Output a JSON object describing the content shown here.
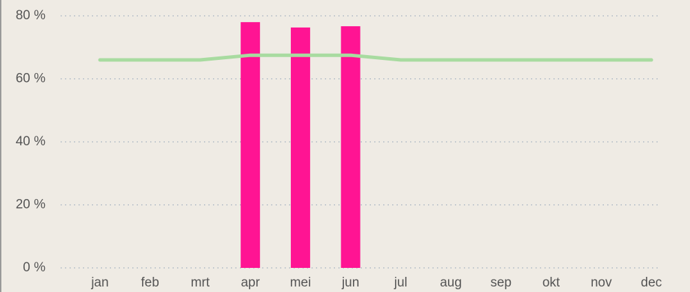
{
  "chart_data": {
    "type": "bar",
    "categories": [
      "jan",
      "feb",
      "mrt",
      "apr",
      "mei",
      "jun",
      "jul",
      "aug",
      "sep",
      "okt",
      "nov",
      "dec"
    ],
    "series": [
      {
        "type": "bar",
        "color": "#ff1493",
        "values": [
          null,
          null,
          null,
          78.0,
          76.3,
          76.7,
          null,
          null,
          null,
          null,
          null,
          null
        ]
      },
      {
        "type": "line",
        "color": "#a8dba0",
        "values": [
          66,
          66,
          66,
          67.5,
          67.5,
          67.5,
          66,
          66,
          66,
          66,
          66,
          66
        ]
      }
    ],
    "ylim": [
      0,
      80
    ],
    "yticks": [
      {
        "value": 0,
        "label": "0 %"
      },
      {
        "value": 20,
        "label": "20 %"
      },
      {
        "value": 40,
        "label": "40 %"
      },
      {
        "value": 60,
        "label": "60 %"
      },
      {
        "value": 80,
        "label": "80 %"
      }
    ],
    "grid": true
  }
}
